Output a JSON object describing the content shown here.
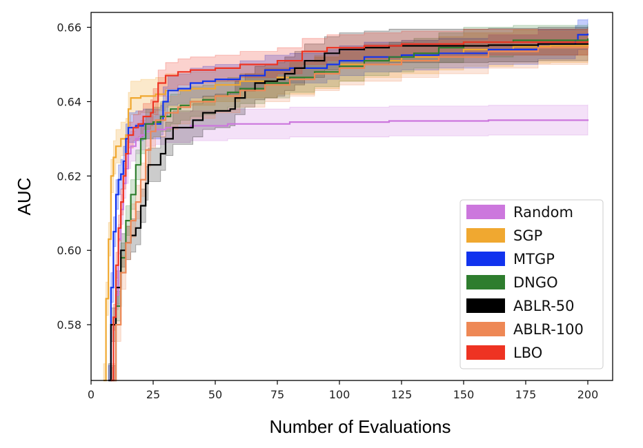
{
  "chart_data": {
    "type": "line",
    "title": "",
    "xlabel": "Number of Evaluations",
    "ylabel": "AUC",
    "xlim": [
      0,
      210
    ],
    "ylim": [
      0.565,
      0.664
    ],
    "xticks": [
      0,
      25,
      50,
      75,
      100,
      125,
      150,
      175,
      200
    ],
    "xtick_labels": [
      "0",
      "25",
      "50",
      "75",
      "100",
      "125",
      "150",
      "175",
      "200"
    ],
    "yticks": [
      0.58,
      0.6,
      0.62,
      0.64,
      0.66
    ],
    "ytick_labels": [
      "0.58",
      "0.60",
      "0.62",
      "0.64",
      "0.66"
    ],
    "grid": false,
    "legend_position": "lower-right",
    "series": [
      {
        "name": "Random",
        "color": "#cc77dd",
        "band_opacity": 0.22,
        "points": [
          [
            9,
            0.565
          ],
          [
            10,
            0.588
          ],
          [
            11,
            0.603
          ],
          [
            12,
            0.611
          ],
          [
            13,
            0.618
          ],
          [
            14,
            0.622
          ],
          [
            15,
            0.626
          ],
          [
            16,
            0.628
          ],
          [
            18,
            0.63
          ],
          [
            20,
            0.631
          ],
          [
            22,
            0.632
          ],
          [
            26,
            0.6325
          ],
          [
            30,
            0.633
          ],
          [
            40,
            0.6335
          ],
          [
            55,
            0.634
          ],
          [
            80,
            0.6345
          ],
          [
            120,
            0.6348
          ],
          [
            160,
            0.635
          ],
          [
            200,
            0.6352
          ]
        ],
        "band": 0.004
      },
      {
        "name": "SGP",
        "color": "#f0a830",
        "band_opacity": 0.25,
        "points": [
          [
            5,
            0.565
          ],
          [
            6,
            0.587
          ],
          [
            7,
            0.603
          ],
          [
            8,
            0.62
          ],
          [
            9,
            0.625
          ],
          [
            10,
            0.628
          ],
          [
            12,
            0.63
          ],
          [
            14,
            0.631
          ],
          [
            15,
            0.638
          ],
          [
            16,
            0.641
          ],
          [
            20,
            0.6415
          ],
          [
            26,
            0.642
          ],
          [
            30,
            0.643
          ],
          [
            40,
            0.6435
          ],
          [
            50,
            0.6445
          ],
          [
            60,
            0.6455
          ],
          [
            75,
            0.6465
          ],
          [
            90,
            0.648
          ],
          [
            100,
            0.65
          ],
          [
            110,
            0.651
          ],
          [
            125,
            0.652
          ],
          [
            140,
            0.653
          ],
          [
            150,
            0.654
          ],
          [
            170,
            0.6548
          ],
          [
            185,
            0.655
          ],
          [
            200,
            0.6555
          ]
        ],
        "band": 0.0045
      },
      {
        "name": "MTGP",
        "color": "#1133ee",
        "band_opacity": 0.25,
        "points": [
          [
            7,
            0.565
          ],
          [
            8,
            0.59
          ],
          [
            9,
            0.605
          ],
          [
            10,
            0.615
          ],
          [
            11,
            0.619
          ],
          [
            12,
            0.6205
          ],
          [
            13,
            0.624
          ],
          [
            14,
            0.63
          ],
          [
            15,
            0.633
          ],
          [
            18,
            0.6335
          ],
          [
            21,
            0.634
          ],
          [
            25,
            0.634
          ],
          [
            28,
            0.635
          ],
          [
            29,
            0.64
          ],
          [
            31,
            0.643
          ],
          [
            35,
            0.6435
          ],
          [
            40,
            0.645
          ],
          [
            45,
            0.6455
          ],
          [
            50,
            0.646
          ],
          [
            60,
            0.647
          ],
          [
            70,
            0.6485
          ],
          [
            80,
            0.649
          ],
          [
            95,
            0.65
          ],
          [
            100,
            0.651
          ],
          [
            110,
            0.652
          ],
          [
            125,
            0.6525
          ],
          [
            140,
            0.653
          ],
          [
            160,
            0.654
          ],
          [
            180,
            0.6555
          ],
          [
            195,
            0.6565
          ],
          [
            196,
            0.658
          ],
          [
            200,
            0.6583
          ]
        ],
        "band": 0.004
      },
      {
        "name": "DNGO",
        "color": "#2e7d2e",
        "band_opacity": 0.2,
        "points": [
          [
            8,
            0.565
          ],
          [
            10,
            0.585
          ],
          [
            12,
            0.598
          ],
          [
            14,
            0.608
          ],
          [
            16,
            0.615
          ],
          [
            18,
            0.623
          ],
          [
            20,
            0.63
          ],
          [
            22,
            0.634
          ],
          [
            25,
            0.6345
          ],
          [
            28,
            0.636
          ],
          [
            32,
            0.638
          ],
          [
            36,
            0.639
          ],
          [
            40,
            0.64
          ],
          [
            45,
            0.6405
          ],
          [
            50,
            0.6415
          ],
          [
            55,
            0.6425
          ],
          [
            60,
            0.6435
          ],
          [
            70,
            0.645
          ],
          [
            80,
            0.6465
          ],
          [
            90,
            0.648
          ],
          [
            100,
            0.6495
          ],
          [
            110,
            0.651
          ],
          [
            120,
            0.652
          ],
          [
            130,
            0.653
          ],
          [
            140,
            0.6545
          ],
          [
            150,
            0.656
          ],
          [
            170,
            0.6565
          ],
          [
            200,
            0.657
          ]
        ],
        "band": 0.004
      },
      {
        "name": "ABLR-50",
        "color": "#000000",
        "band_opacity": 0.2,
        "points": [
          [
            7,
            0.565
          ],
          [
            8,
            0.58
          ],
          [
            10,
            0.59
          ],
          [
            12,
            0.6
          ],
          [
            14,
            0.602
          ],
          [
            16,
            0.604
          ],
          [
            18,
            0.606
          ],
          [
            20,
            0.612
          ],
          [
            22,
            0.618
          ],
          [
            23,
            0.623
          ],
          [
            26,
            0.623
          ],
          [
            28,
            0.626
          ],
          [
            30,
            0.63
          ],
          [
            33,
            0.633
          ],
          [
            38,
            0.633
          ],
          [
            41,
            0.635
          ],
          [
            45,
            0.637
          ],
          [
            50,
            0.6375
          ],
          [
            56,
            0.638
          ],
          [
            58,
            0.641
          ],
          [
            62,
            0.643
          ],
          [
            66,
            0.645
          ],
          [
            70,
            0.6455
          ],
          [
            75,
            0.646
          ],
          [
            78,
            0.6475
          ],
          [
            82,
            0.649
          ],
          [
            86,
            0.651
          ],
          [
            92,
            0.651
          ],
          [
            94,
            0.653
          ],
          [
            100,
            0.654
          ],
          [
            110,
            0.6545
          ],
          [
            120,
            0.655
          ],
          [
            140,
            0.655
          ],
          [
            160,
            0.6552
          ],
          [
            180,
            0.6555
          ],
          [
            200,
            0.6557
          ]
        ],
        "band": 0.0045
      },
      {
        "name": "ABLR-100",
        "color": "#ee8855",
        "band_opacity": 0.22,
        "points": [
          [
            8,
            0.565
          ],
          [
            10,
            0.58
          ],
          [
            12,
            0.594
          ],
          [
            14,
            0.602
          ],
          [
            16,
            0.608
          ],
          [
            18,
            0.613
          ],
          [
            20,
            0.619
          ],
          [
            22,
            0.627
          ],
          [
            24,
            0.632
          ],
          [
            26,
            0.635
          ],
          [
            30,
            0.637
          ],
          [
            35,
            0.6385
          ],
          [
            40,
            0.64
          ],
          [
            50,
            0.6415
          ],
          [
            60,
            0.643
          ],
          [
            70,
            0.6445
          ],
          [
            80,
            0.646
          ],
          [
            90,
            0.6475
          ],
          [
            100,
            0.649
          ],
          [
            110,
            0.65
          ],
          [
            125,
            0.651
          ],
          [
            140,
            0.652
          ],
          [
            160,
            0.6535
          ],
          [
            180,
            0.6545
          ],
          [
            200,
            0.655
          ]
        ],
        "band": 0.0045
      },
      {
        "name": "LBO",
        "color": "#ee3322",
        "band_opacity": 0.22,
        "points": [
          [
            8,
            0.565
          ],
          [
            9,
            0.582
          ],
          [
            10,
            0.596
          ],
          [
            11,
            0.606
          ],
          [
            12,
            0.613
          ],
          [
            13,
            0.62
          ],
          [
            14,
            0.626
          ],
          [
            15,
            0.631
          ],
          [
            17,
            0.633
          ],
          [
            19,
            0.634
          ],
          [
            21,
            0.636
          ],
          [
            24,
            0.637
          ],
          [
            25,
            0.64
          ],
          [
            27,
            0.645
          ],
          [
            30,
            0.647
          ],
          [
            35,
            0.648
          ],
          [
            40,
            0.6485
          ],
          [
            50,
            0.649
          ],
          [
            60,
            0.65
          ],
          [
            75,
            0.651
          ],
          [
            85,
            0.6535
          ],
          [
            95,
            0.6545
          ],
          [
            110,
            0.655
          ],
          [
            125,
            0.6555
          ],
          [
            150,
            0.656
          ],
          [
            175,
            0.656
          ],
          [
            200,
            0.6563
          ]
        ],
        "band": 0.0035
      }
    ]
  }
}
